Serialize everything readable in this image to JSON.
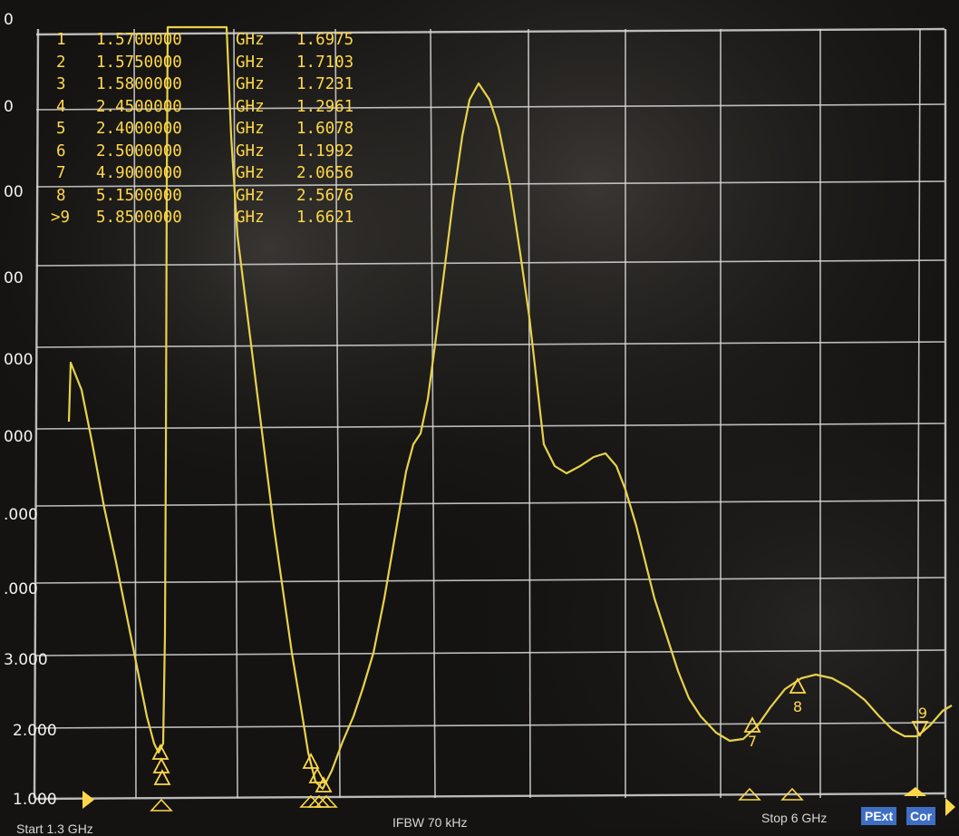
{
  "axis": {
    "y_labels": [
      "0",
      "0",
      "00",
      "00",
      "000",
      "000",
      ".000",
      ".000",
      "3.000",
      "2.000",
      "1.000"
    ]
  },
  "markers": [
    {
      "num": "1",
      "freq": "1.5700000",
      "unit": "GHz",
      "value": "1.6975"
    },
    {
      "num": "2",
      "freq": "1.5750000",
      "unit": "GHz",
      "value": "1.7103"
    },
    {
      "num": "3",
      "freq": "1.5800000",
      "unit": "GHz",
      "value": "1.7231"
    },
    {
      "num": "4",
      "freq": "2.4500000",
      "unit": "GHz",
      "value": "1.2961"
    },
    {
      "num": "5",
      "freq": "2.4000000",
      "unit": "GHz",
      "value": "1.6078"
    },
    {
      "num": "6",
      "freq": "2.5000000",
      "unit": "GHz",
      "value": "1.1992"
    },
    {
      "num": "7",
      "freq": "4.9000000",
      "unit": "GHz",
      "value": "2.0656"
    },
    {
      "num": "8",
      "freq": "5.1500000",
      "unit": "GHz",
      "value": "2.5676"
    },
    {
      "num": ">9",
      "freq": "5.8500000",
      "unit": "GHz",
      "value": "1.6621"
    }
  ],
  "trace_markers": {
    "m7": "7",
    "m8": "8",
    "m9": "9"
  },
  "status_bar": {
    "start": "Start 1.3 GHz",
    "ifbw": "IFBW 70 kHz",
    "stop": "Stop 6 GHz",
    "pext": "PExt",
    "cor": "Cor"
  },
  "colors": {
    "trace": "#e8d24a",
    "grid": "#d8d8d8",
    "background": "#141311",
    "badge": "#3f6fc4"
  }
}
